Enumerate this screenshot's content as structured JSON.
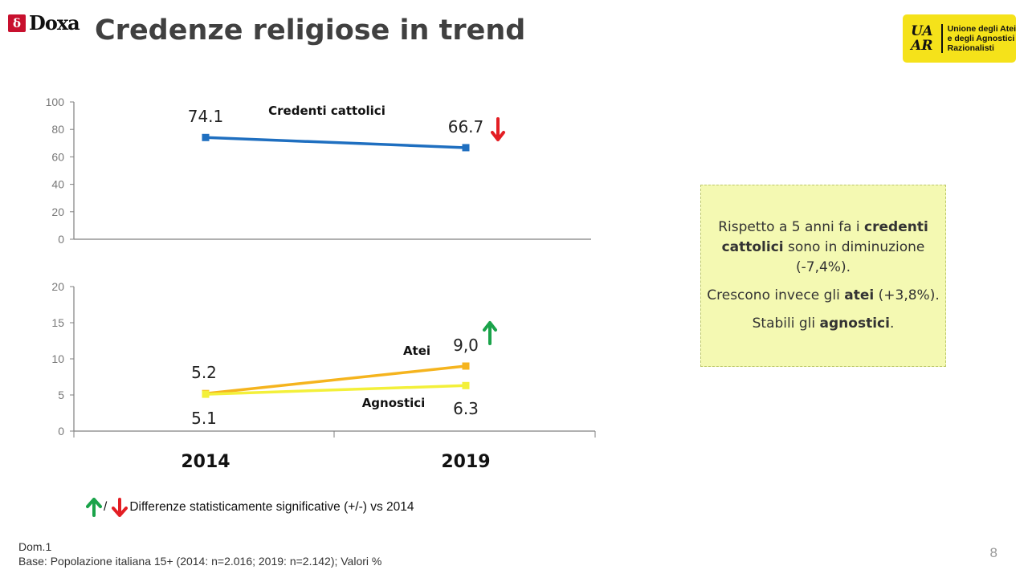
{
  "header": {
    "logo_mark": "δ",
    "logo_text": "Doxa",
    "title": "Credenze religiose in trend",
    "partner_logo": {
      "mark_lines": [
        "UA",
        "AR"
      ],
      "text_lines": [
        "Unione degli Atei",
        "e degli Agnostici",
        "Razionalisti"
      ]
    }
  },
  "chart_data": [
    {
      "type": "line",
      "x": [
        "2014",
        "2019"
      ],
      "ylim": [
        0,
        100
      ],
      "yticks": [
        0,
        20,
        40,
        60,
        80,
        100
      ],
      "grid": false,
      "series": [
        {
          "name": "Credenti cattolici",
          "values": [
            74.1,
            66.7
          ],
          "labels": [
            "74.1",
            "66.7"
          ],
          "color": "#1f6fc0",
          "significance": "down"
        }
      ]
    },
    {
      "type": "line",
      "x": [
        "2014",
        "2019"
      ],
      "ylim": [
        0,
        20
      ],
      "yticks": [
        0,
        5,
        10,
        15,
        20
      ],
      "grid": false,
      "series": [
        {
          "name": "Atei",
          "values": [
            5.2,
            9.0
          ],
          "labels": [
            "5.2",
            "9,0"
          ],
          "color": "#f5b41e",
          "significance": "up"
        },
        {
          "name": "Agnostici",
          "values": [
            5.1,
            6.3
          ],
          "labels": [
            "5.1",
            "6.3"
          ],
          "color": "#f3f03a",
          "significance": "none"
        }
      ]
    }
  ],
  "colors": {
    "up_arrow": "#1aa34a",
    "down_arrow": "#e31e24",
    "axis": "#808080",
    "info_box_bg": "#f4f9b2"
  },
  "info_box": {
    "p1_pre": "Rispetto a 5 anni fa i ",
    "p1_bold": "credenti cattolici",
    "p1_post": " sono in diminuzione (-7,4%).",
    "p2_pre": "Crescono invece gli ",
    "p2_bold": "atei",
    "p2_post": " (+3,8%).",
    "p3_pre": "Stabili gli ",
    "p3_bold": "agnostici",
    "p3_post": "."
  },
  "legend_note": {
    "separator": "/",
    "text": "Differenze statisticamente significative (+/-) vs 2014"
  },
  "footer": {
    "line1": "Dom.1",
    "line2": "Base: Popolazione italiana 15+ (2014: n=2.016; 2019: n=2.142); Valori %"
  },
  "page_number": "8"
}
